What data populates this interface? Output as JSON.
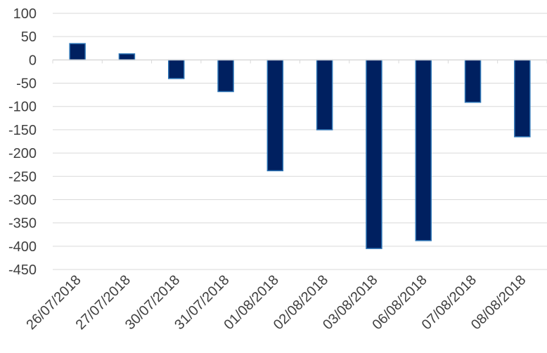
{
  "colors": {
    "bar_fill": "#002060",
    "bar_stroke": "#2e75b6",
    "grid": "#d9d9d9",
    "text": "#404040"
  },
  "chart_data": {
    "type": "bar",
    "categories": [
      "26/07/2018",
      "27/07/2018",
      "30/07/2018",
      "31/07/2018",
      "01/08/2018",
      "02/08/2018",
      "03/08/2018",
      "06/08/2018",
      "07/08/2018",
      "08/08/2018"
    ],
    "values": [
      35,
      13,
      -40,
      -68,
      -238,
      -150,
      -405,
      -388,
      -91,
      -165
    ],
    "ylim": [
      -450,
      100
    ],
    "y_ticks": [
      "100",
      "50",
      "0",
      "-50",
      "-100",
      "-150",
      "-200",
      "-250",
      "-300",
      "-350",
      "-400",
      "-450"
    ],
    "title": "",
    "xlabel": "",
    "ylabel": "",
    "grid": true
  }
}
